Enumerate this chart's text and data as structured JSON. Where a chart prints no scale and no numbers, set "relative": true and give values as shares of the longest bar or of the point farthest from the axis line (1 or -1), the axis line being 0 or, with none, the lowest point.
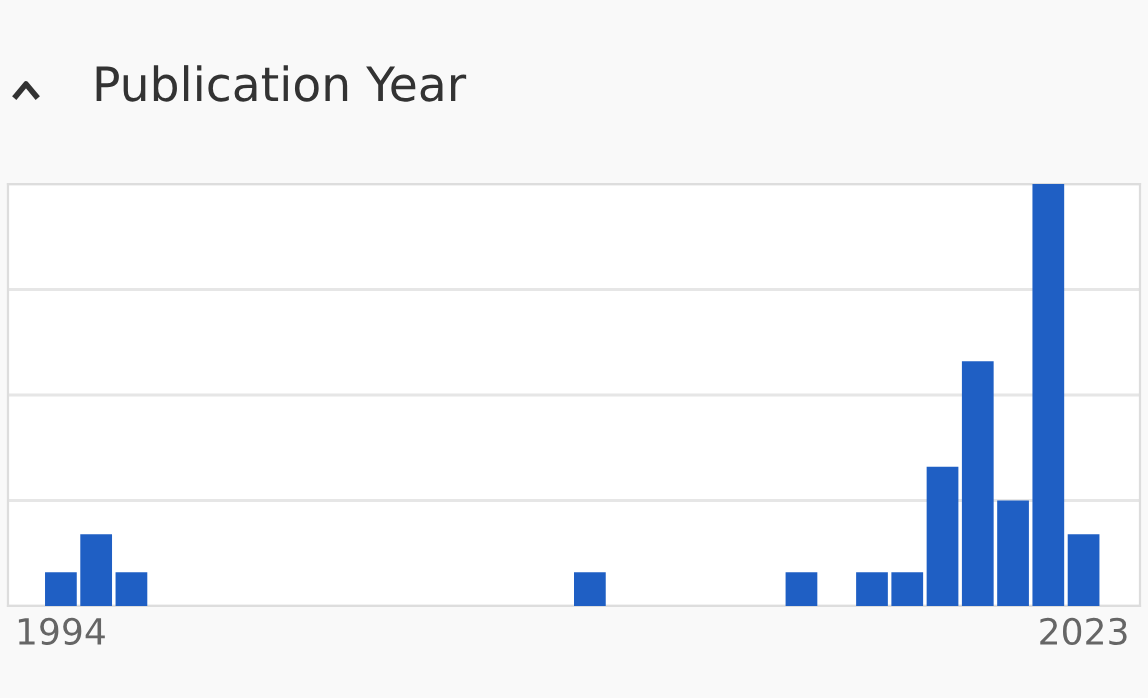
{
  "chart_data": {
    "type": "bar",
    "title": "Publication Year",
    "relative": true,
    "grid": "y",
    "color": "#1f5fc4",
    "categories": [
      "1994",
      null,
      null,
      null,
      null,
      null,
      null,
      null,
      null,
      null,
      null,
      null,
      null,
      null,
      null,
      null,
      null,
      null,
      null,
      null,
      null,
      null,
      null,
      null,
      null,
      null,
      null,
      null,
      null,
      "2023"
    ],
    "values": [
      0.08,
      0.17,
      0.08,
      0,
      0,
      0,
      0,
      0,
      0,
      0,
      0,
      0,
      0,
      0,
      0,
      0.08,
      0,
      0,
      0,
      0,
      0,
      0.08,
      0,
      0.08,
      0.08,
      0.33,
      0.58,
      0.25,
      1,
      0.17
    ]
  }
}
